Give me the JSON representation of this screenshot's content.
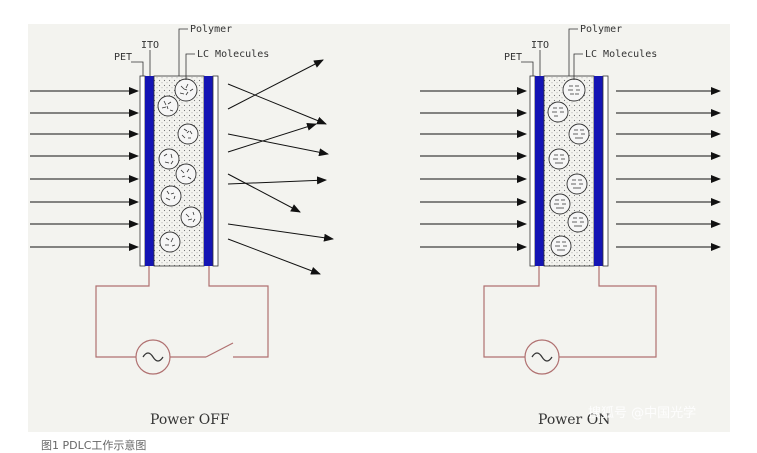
{
  "labels": {
    "pet": "PET",
    "ito": "ITO",
    "polymer": "Polymer",
    "lc": "LC Molecules"
  },
  "states": {
    "off": "Power OFF",
    "on": "Power ON"
  },
  "watermark": "搜狐号 @中国光学",
  "caption": "图1 PDLC工作示意图",
  "colors": {
    "electrode": "#1414b4",
    "wire": "#b07070",
    "arrow": "#111111",
    "lc_fill": "#f6f6f6"
  },
  "icons": {
    "source": "ac-source-icon",
    "switch": "switch-icon"
  }
}
